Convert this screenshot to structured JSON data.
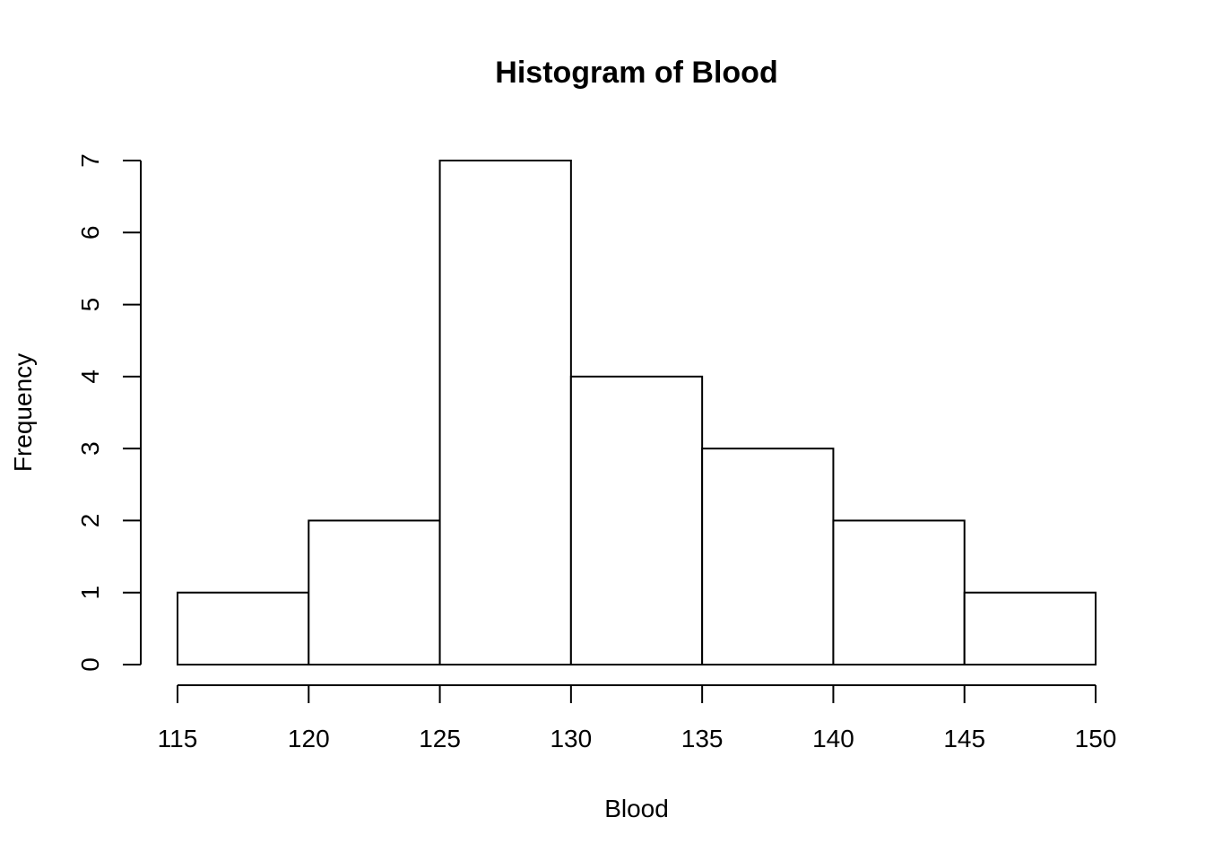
{
  "chart_data": {
    "type": "bar",
    "title": "Histogram of Blood",
    "xlabel": "Blood",
    "ylabel": "Frequency",
    "bins": [
      {
        "from": 115,
        "to": 120,
        "count": 1
      },
      {
        "from": 120,
        "to": 125,
        "count": 2
      },
      {
        "from": 125,
        "to": 130,
        "count": 7
      },
      {
        "from": 130,
        "to": 135,
        "count": 4
      },
      {
        "from": 135,
        "to": 140,
        "count": 3
      },
      {
        "from": 140,
        "to": 145,
        "count": 2
      },
      {
        "from": 145,
        "to": 150,
        "count": 1
      }
    ],
    "xticks": [
      "115",
      "120",
      "125",
      "130",
      "135",
      "140",
      "145",
      "150"
    ],
    "yticks": [
      "0",
      "1",
      "2",
      "3",
      "4",
      "5",
      "6",
      "7"
    ],
    "xlim": [
      115,
      150
    ],
    "ylim": [
      0,
      7
    ],
    "grid": false,
    "bar_fill": "#ffffff",
    "stroke_color": "#000000"
  }
}
